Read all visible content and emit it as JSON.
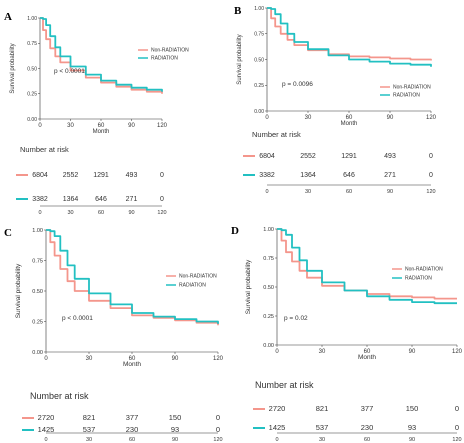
{
  "colors": {
    "non_radiation": "#f4968c",
    "radiation": "#22c0c2",
    "axis": "#333333",
    "grid": "#cccccc"
  },
  "chart_data": [
    {
      "panel": "A",
      "type": "line",
      "ylabel": "Survival probability",
      "xlabel": "Month",
      "pvalue": "p < 0.0001",
      "xlim": [
        0,
        120
      ],
      "ylim": [
        0,
        1
      ],
      "x_ticks": [
        "0",
        "30",
        "60",
        "90",
        "120"
      ],
      "y_ticks": [
        "0.00",
        "0.25",
        "0.50",
        "0.75",
        "1.00"
      ],
      "legend": [
        "Non-RADIATION",
        "RADIATION"
      ],
      "series": [
        {
          "name": "Non-RADIATION",
          "x": [
            0,
            3,
            6,
            10,
            15,
            20,
            30,
            45,
            60,
            75,
            90,
            105,
            120
          ],
          "y": [
            1.0,
            0.88,
            0.79,
            0.7,
            0.62,
            0.56,
            0.48,
            0.41,
            0.36,
            0.32,
            0.29,
            0.27,
            0.25
          ]
        },
        {
          "name": "RADIATION",
          "x": [
            0,
            3,
            6,
            10,
            15,
            20,
            30,
            45,
            60,
            75,
            90,
            105,
            120
          ],
          "y": [
            1.0,
            0.99,
            0.93,
            0.82,
            0.71,
            0.62,
            0.52,
            0.44,
            0.38,
            0.34,
            0.31,
            0.29,
            0.27
          ]
        }
      ],
      "risk_title": "Number at risk",
      "risk_rows": [
        {
          "name": "Non-RADIATION",
          "values": [
            "6804",
            "2552",
            "1291",
            "493",
            "0"
          ]
        },
        {
          "name": "RADIATION",
          "values": [
            "3382",
            "1364",
            "646",
            "271",
            "0"
          ]
        }
      ]
    },
    {
      "panel": "B",
      "type": "line",
      "ylabel": "Survival probability",
      "xlabel": "Month",
      "pvalue": "p = 0.0096",
      "xlim": [
        0,
        120
      ],
      "ylim": [
        0,
        1
      ],
      "x_ticks": [
        "0",
        "30",
        "60",
        "90",
        "120"
      ],
      "y_ticks": [
        "0.00",
        "0.25",
        "0.50",
        "0.75",
        "1.00"
      ],
      "legend": [
        "Non-RADIATION",
        "RADIATION"
      ],
      "series": [
        {
          "name": "Non-RADIATION",
          "x": [
            0,
            3,
            6,
            10,
            15,
            20,
            30,
            45,
            60,
            75,
            90,
            105,
            120
          ],
          "y": [
            1.0,
            0.9,
            0.82,
            0.75,
            0.69,
            0.64,
            0.59,
            0.55,
            0.53,
            0.52,
            0.51,
            0.5,
            0.49
          ]
        },
        {
          "name": "RADIATION",
          "x": [
            0,
            3,
            6,
            10,
            15,
            20,
            30,
            45,
            60,
            75,
            90,
            105,
            120
          ],
          "y": [
            1.0,
            0.99,
            0.94,
            0.85,
            0.75,
            0.67,
            0.6,
            0.54,
            0.5,
            0.48,
            0.46,
            0.45,
            0.43
          ]
        }
      ],
      "risk_title": "Number at risk",
      "risk_rows": [
        {
          "name": "Non-RADIATION",
          "values": [
            "6804",
            "2552",
            "1291",
            "493",
            "0"
          ]
        },
        {
          "name": "RADIATION",
          "values": [
            "3382",
            "1364",
            "646",
            "271",
            "0"
          ]
        }
      ]
    },
    {
      "panel": "C",
      "type": "line",
      "ylabel": "Survival probability",
      "xlabel": "Month",
      "pvalue": "p < 0.0001",
      "xlim": [
        0,
        120
      ],
      "ylim": [
        0,
        1
      ],
      "x_ticks": [
        "0",
        "30",
        "60",
        "90",
        "120"
      ],
      "y_ticks": [
        "0.00",
        "0.25",
        "0.50",
        "0.75",
        "1.00"
      ],
      "legend": [
        "Non-RADIATION",
        "RADIATION"
      ],
      "series": [
        {
          "name": "Non-RADIATION",
          "x": [
            0,
            3,
            6,
            10,
            15,
            20,
            30,
            45,
            60,
            75,
            90,
            105,
            120
          ],
          "y": [
            1.0,
            0.9,
            0.79,
            0.68,
            0.58,
            0.5,
            0.42,
            0.36,
            0.3,
            0.28,
            0.26,
            0.24,
            0.22
          ]
        },
        {
          "name": "RADIATION",
          "x": [
            0,
            3,
            6,
            10,
            15,
            20,
            30,
            45,
            60,
            75,
            90,
            105,
            120
          ],
          "y": [
            1.0,
            0.99,
            0.95,
            0.83,
            0.71,
            0.6,
            0.48,
            0.39,
            0.32,
            0.29,
            0.27,
            0.25,
            0.23
          ]
        }
      ],
      "risk_title": "Number at risk",
      "risk_rows": [
        {
          "name": "Non-RADIATION",
          "values": [
            "2720",
            "821",
            "377",
            "150",
            "0"
          ]
        },
        {
          "name": "RADIATION",
          "values": [
            "1425",
            "537",
            "230",
            "93",
            "0"
          ]
        }
      ]
    },
    {
      "panel": "D",
      "type": "line",
      "ylabel": "Survival probability",
      "xlabel": "Month",
      "pvalue": "p = 0.02",
      "xlim": [
        0,
        120
      ],
      "ylim": [
        0,
        1
      ],
      "x_ticks": [
        "0",
        "30",
        "60",
        "90",
        "120"
      ],
      "y_ticks": [
        "0.00",
        "0.25",
        "0.50",
        "0.75",
        "1.00"
      ],
      "legend": [
        "Non-RADIATION",
        "RADIATION"
      ],
      "series": [
        {
          "name": "Non-RADIATION",
          "x": [
            0,
            3,
            6,
            10,
            15,
            20,
            30,
            45,
            60,
            75,
            90,
            105,
            120
          ],
          "y": [
            1.0,
            0.9,
            0.8,
            0.72,
            0.64,
            0.58,
            0.51,
            0.47,
            0.44,
            0.42,
            0.41,
            0.4,
            0.4
          ]
        },
        {
          "name": "RADIATION",
          "x": [
            0,
            3,
            6,
            10,
            15,
            20,
            30,
            45,
            60,
            75,
            90,
            105,
            120
          ],
          "y": [
            1.0,
            0.99,
            0.95,
            0.84,
            0.73,
            0.64,
            0.54,
            0.47,
            0.42,
            0.39,
            0.37,
            0.36,
            0.36
          ]
        }
      ],
      "risk_title": "Number at risk",
      "risk_rows": [
        {
          "name": "Non-RADIATION",
          "values": [
            "2720",
            "821",
            "377",
            "150",
            "0"
          ]
        },
        {
          "name": "RADIATION",
          "values": [
            "1425",
            "537",
            "230",
            "93",
            "0"
          ]
        }
      ]
    }
  ]
}
